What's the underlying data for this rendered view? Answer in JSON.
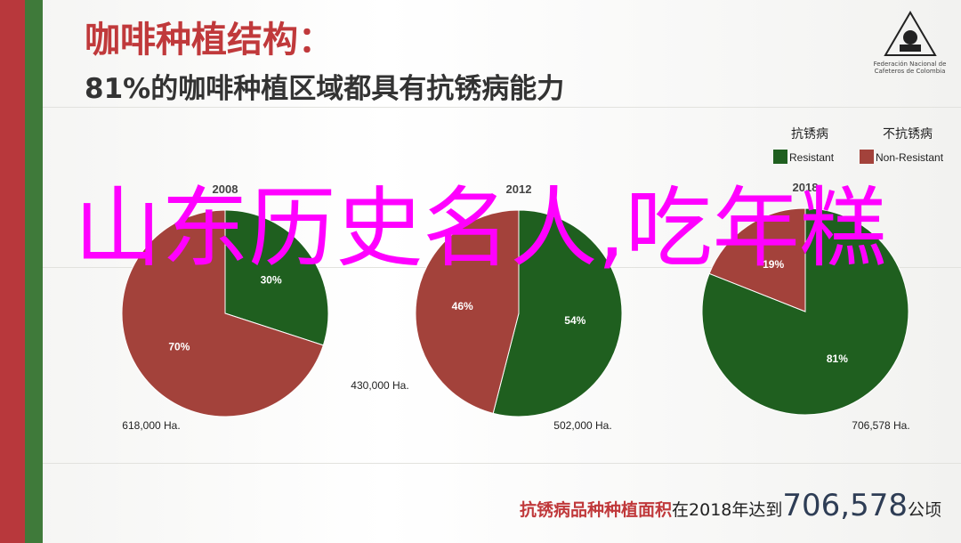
{
  "header": {
    "title": "咖啡种植结构：",
    "subtitle": "81%的咖啡种植区域都具有抗锈病能力"
  },
  "logo": {
    "text": "Federación Nacional de Cafeteros de Colombia"
  },
  "legend": {
    "items": [
      {
        "title": "抗锈病",
        "label": "Resistant",
        "color": "#1f5f1f"
      },
      {
        "title": "不抗锈病",
        "label": "Non-Resistant",
        "color": "#a3423b"
      }
    ]
  },
  "chart_data": [
    {
      "type": "pie",
      "title": "2008",
      "categories": [
        "Resistant",
        "Non-Resistant"
      ],
      "values": [
        30,
        70
      ],
      "value_labels": [
        "30%",
        "70%"
      ],
      "colors": [
        "#1f5f1f",
        "#a3423b"
      ],
      "annotations": [
        "618,000 Ha."
      ]
    },
    {
      "type": "pie",
      "title": "2012",
      "categories": [
        "Resistant",
        "Non-Resistant"
      ],
      "values": [
        54,
        46
      ],
      "value_labels": [
        "54%",
        "46%"
      ],
      "colors": [
        "#1f5f1f",
        "#a3423b"
      ],
      "annotations": [
        "430,000 Ha.",
        "502,000 Ha."
      ]
    },
    {
      "type": "pie",
      "title": "2018",
      "categories": [
        "Resistant",
        "Non-Resistant"
      ],
      "values": [
        81,
        19
      ],
      "value_labels": [
        "81%",
        "19%"
      ],
      "colors": [
        "#1f5f1f",
        "#a3423b"
      ],
      "annotations": [
        "706,578 Ha."
      ]
    }
  ],
  "footer": {
    "part1": "抗锈病品种种植面积",
    "part2": "在2018年达到",
    "number": "706,578",
    "unit": "公顷"
  },
  "overlay": {
    "text": "山东历史名人,吃年糕"
  }
}
